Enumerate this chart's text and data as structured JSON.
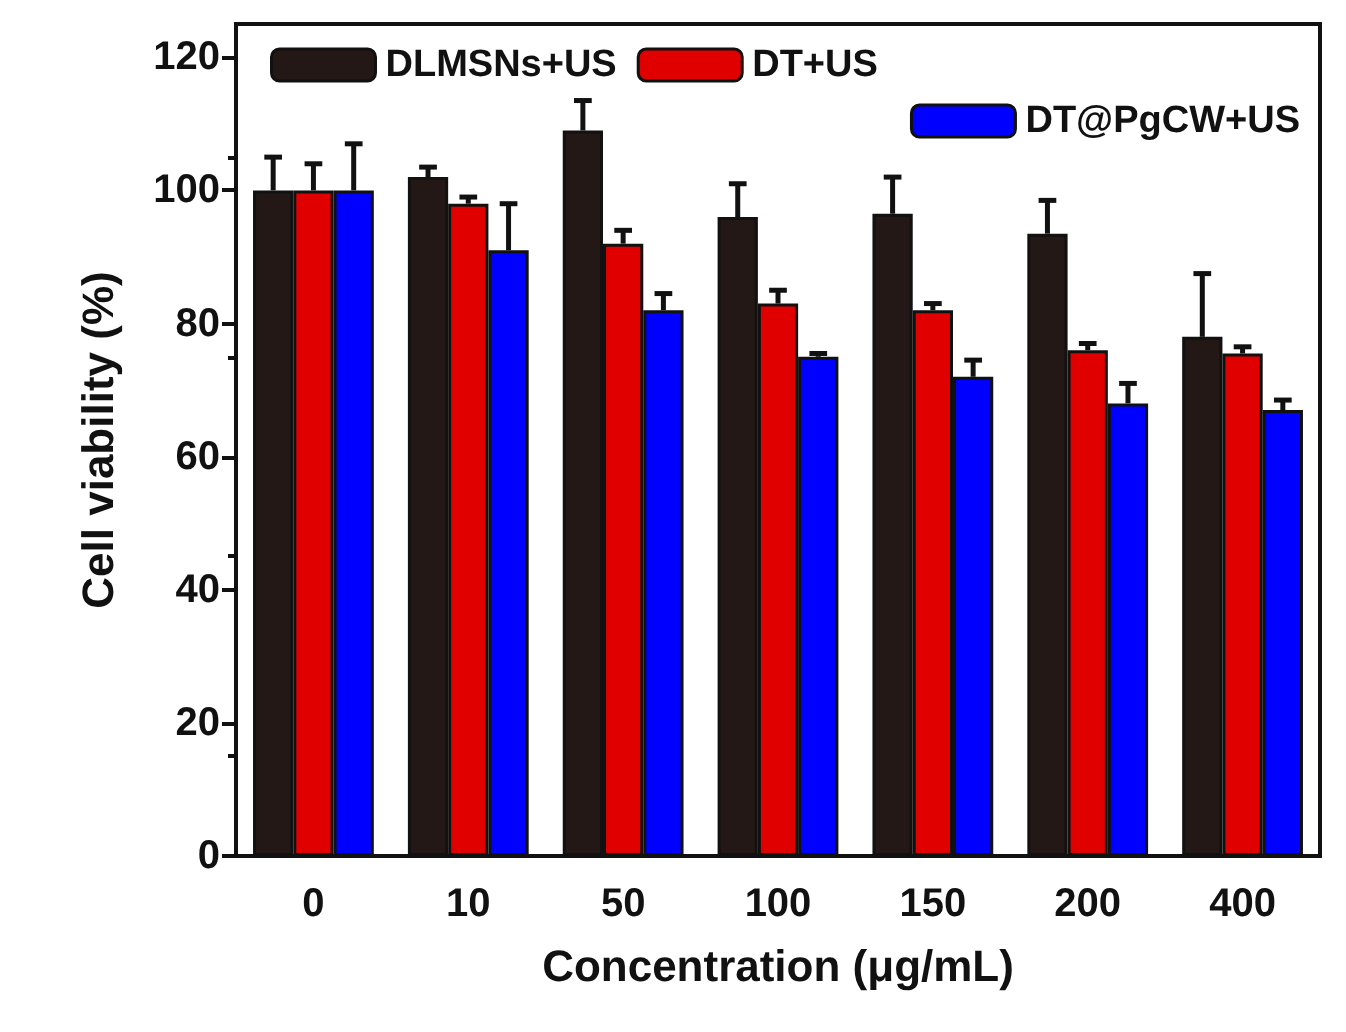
{
  "chart_data": {
    "type": "bar",
    "xlabel": "Concentration (μg/mL)",
    "ylabel": "Cell viability (%)",
    "categories": [
      "0",
      "10",
      "50",
      "100",
      "150",
      "200",
      "400"
    ],
    "series": [
      {
        "name": "DLMSNs+US",
        "color": "#231815",
        "values": [
          100,
          102,
          109,
          96,
          96.5,
          93.5,
          78
        ],
        "errors": [
          [
            100,
            105
          ],
          [
            102,
            103.5
          ],
          [
            109,
            113.5
          ],
          [
            96,
            101
          ],
          [
            96.5,
            102
          ],
          [
            93.5,
            98.5
          ],
          [
            78,
            87.5
          ]
        ]
      },
      {
        "name": "DT+US",
        "color": "#e00000",
        "values": [
          100,
          98,
          92,
          83,
          82,
          76,
          75.5
        ],
        "errors": [
          [
            100,
            104
          ],
          [
            98,
            99
          ],
          [
            92,
            94
          ],
          [
            83,
            85
          ],
          [
            82,
            83
          ],
          [
            76,
            77
          ],
          [
            75.5,
            76.5
          ]
        ]
      },
      {
        "name": "DT@PgCW+US",
        "color": "#0000ff",
        "values": [
          100,
          91,
          82,
          75,
          72,
          68,
          67
        ],
        "errors": [
          [
            100,
            107
          ],
          [
            91,
            98
          ],
          [
            82,
            84.5
          ],
          [
            75,
            75.5
          ],
          [
            72,
            74.5
          ],
          [
            68,
            71
          ],
          [
            67,
            68.5
          ]
        ]
      }
    ],
    "ylim": [
      0,
      125
    ],
    "yticks": [
      0,
      20,
      40,
      60,
      80,
      100,
      120
    ],
    "grid": false,
    "legend": "top"
  }
}
